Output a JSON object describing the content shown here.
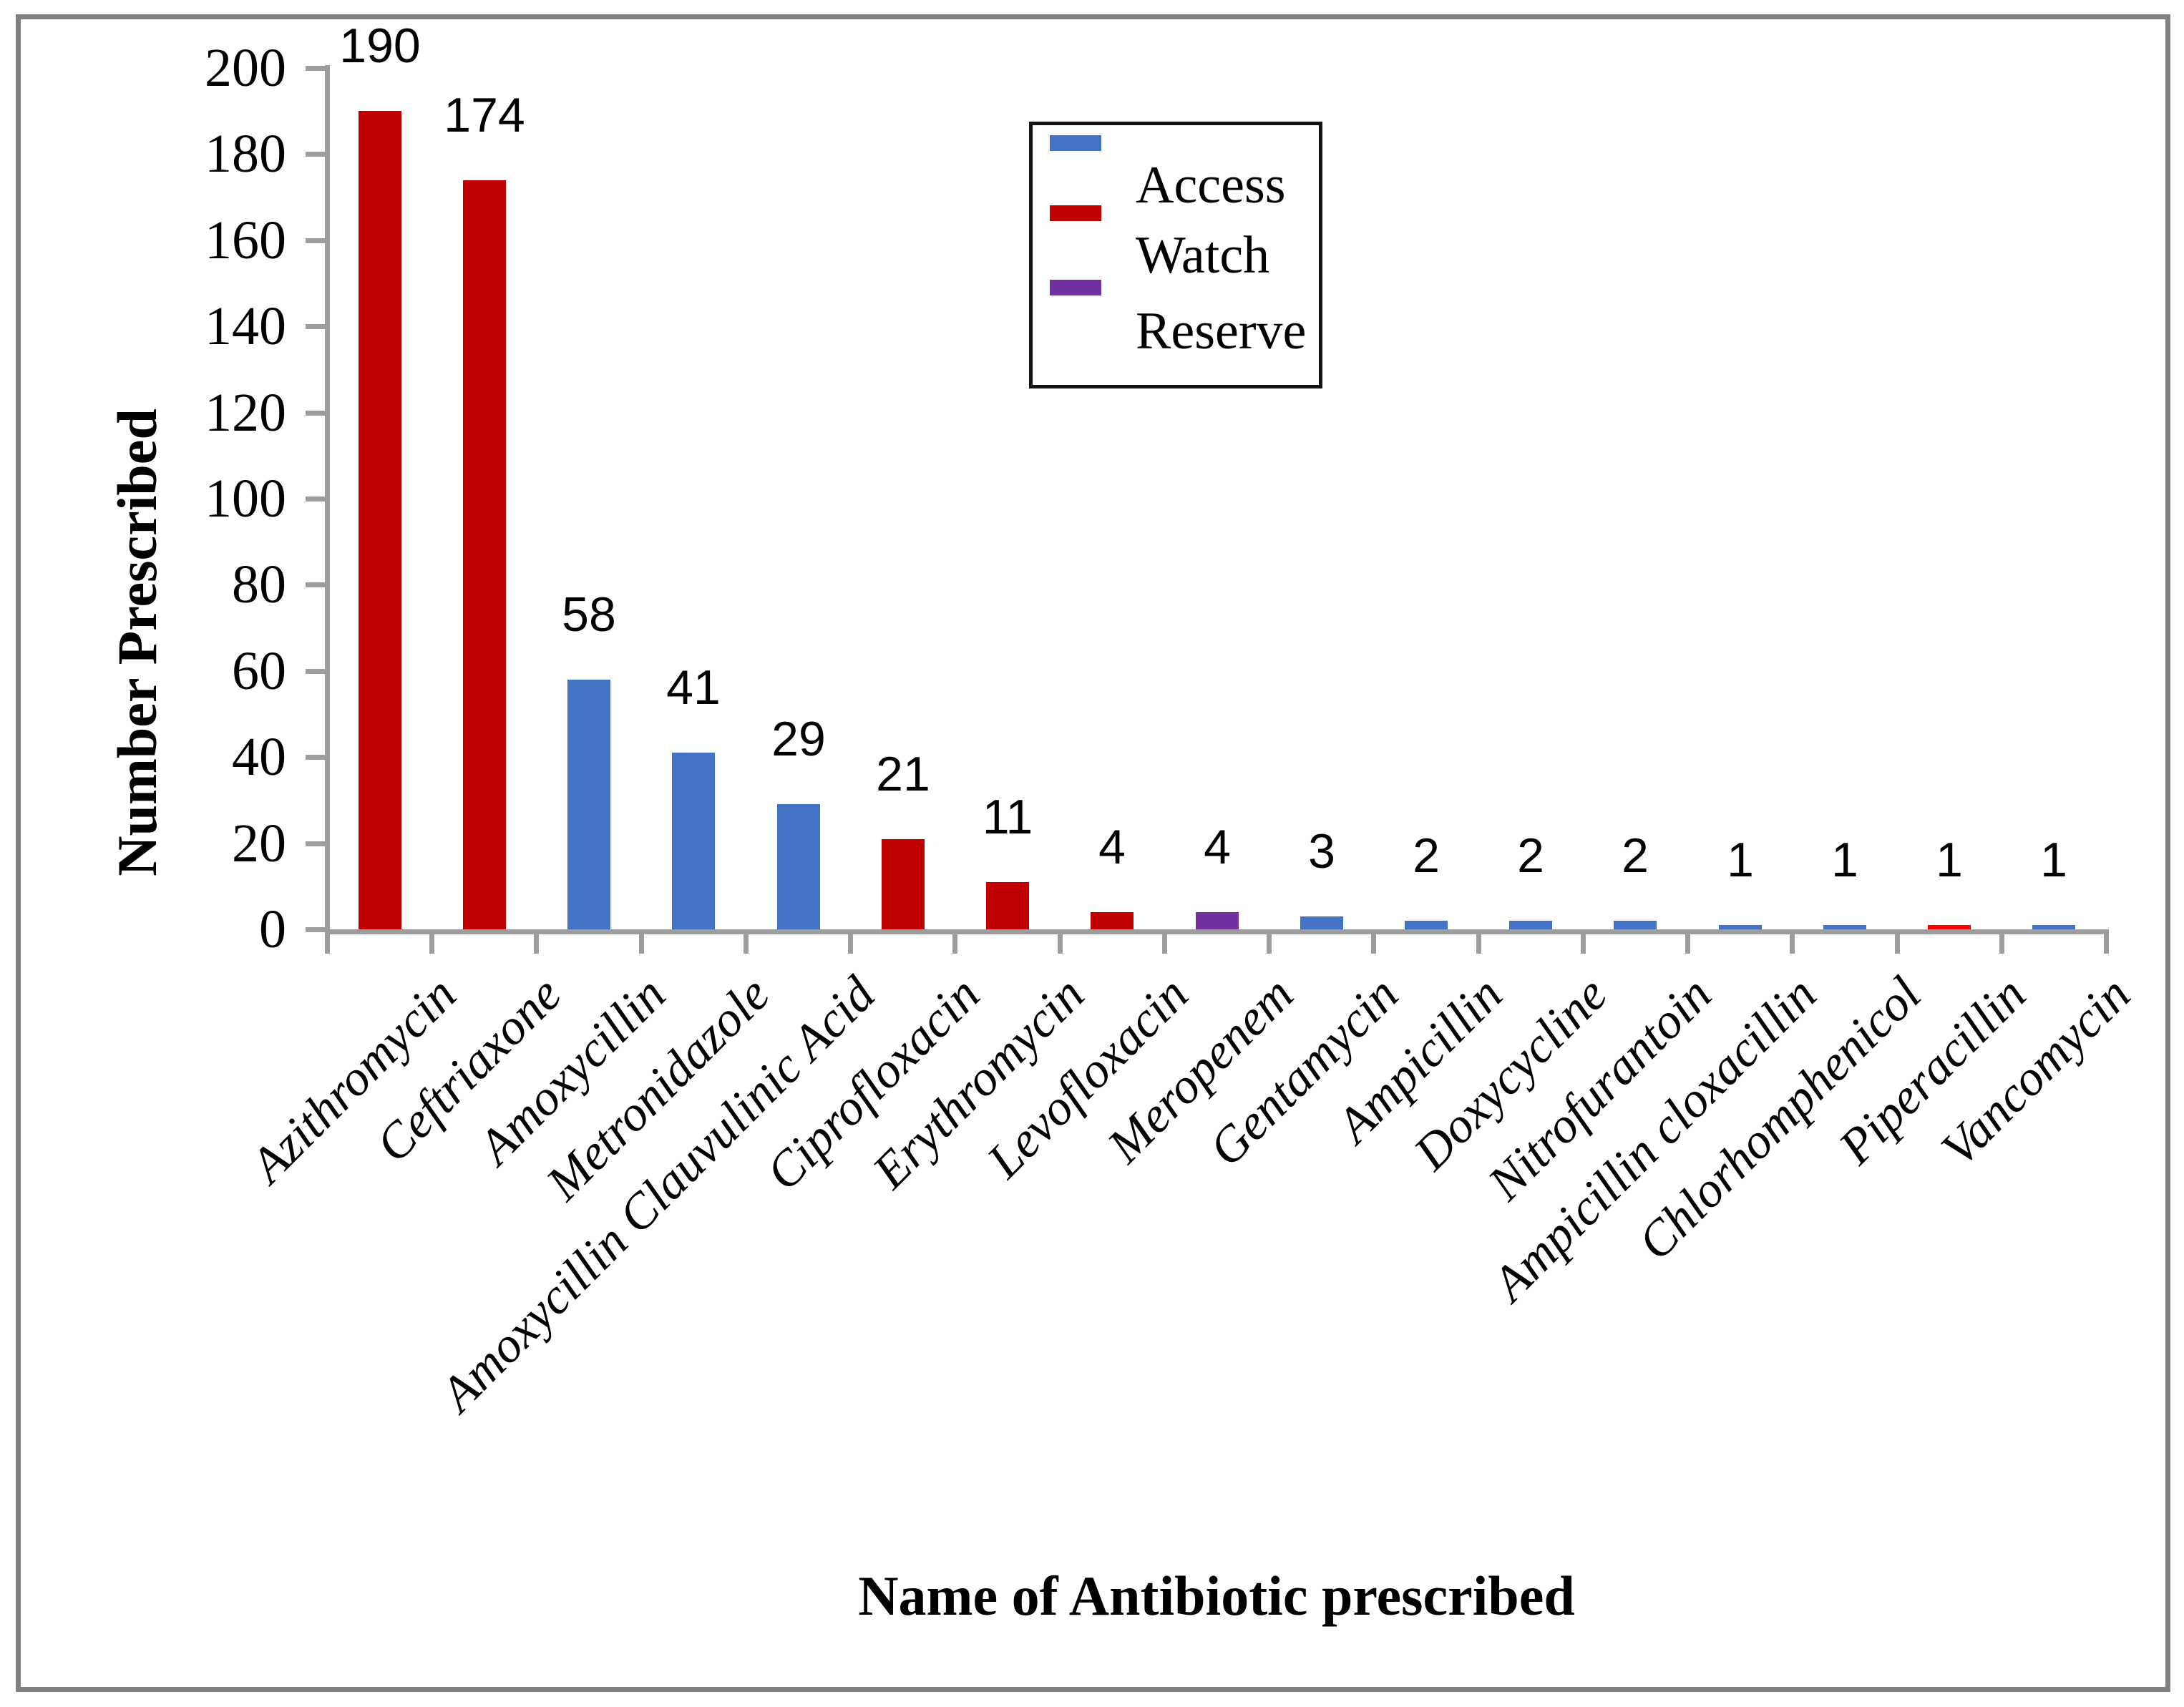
{
  "chart_data": {
    "type": "bar",
    "title": "",
    "xlabel": "Name of Antibiotic prescribed",
    "ylabel": "Number Prescribed",
    "ylim": [
      0,
      200
    ],
    "ytick_step": 20,
    "yticks": [
      0,
      20,
      40,
      60,
      80,
      100,
      120,
      140,
      160,
      180,
      200
    ],
    "grid": false,
    "legend": {
      "position": "top-right-inside",
      "entries": [
        {
          "label": "Access",
          "color": "#4472C4"
        },
        {
          "label": "Watch",
          "color": "#C00000"
        },
        {
          "label": "Reserve",
          "color": "#7030A0"
        }
      ]
    },
    "bars": [
      {
        "category": "Azithromycin",
        "value": 190,
        "group": "Watch",
        "color": "#C00000"
      },
      {
        "category": "Ceftriaxone",
        "value": 174,
        "group": "Watch",
        "color": "#C00000"
      },
      {
        "category": "Amoxycillin",
        "value": 58,
        "group": "Access",
        "color": "#4472C4"
      },
      {
        "category": "Metronidazole",
        "value": 41,
        "group": "Access",
        "color": "#4472C4"
      },
      {
        "category": "Amoxycillin Clauvulinic Acid",
        "value": 29,
        "group": "Access",
        "color": "#4472C4"
      },
      {
        "category": "Ciprofloxacin",
        "value": 21,
        "group": "Watch",
        "color": "#C00000"
      },
      {
        "category": "Erythromycin",
        "value": 11,
        "group": "Watch",
        "color": "#C00000"
      },
      {
        "category": "Levofloxacin",
        "value": 4,
        "group": "Watch",
        "color": "#C00000"
      },
      {
        "category": "Meropenem",
        "value": 4,
        "group": "Reserve",
        "color": "#7030A0"
      },
      {
        "category": "Gentamycin",
        "value": 3,
        "group": "Access",
        "color": "#4472C4"
      },
      {
        "category": "Ampicillin",
        "value": 2,
        "group": "Access",
        "color": "#4472C4"
      },
      {
        "category": "Doxycycline",
        "value": 2,
        "group": "Access",
        "color": "#4472C4"
      },
      {
        "category": "Nitrofurantoin",
        "value": 2,
        "group": "Access",
        "color": "#4472C4"
      },
      {
        "category": "Ampicillin cloxacillin",
        "value": 1,
        "group": "Access",
        "color": "#4472C4"
      },
      {
        "category": "Chlorhomphenicol",
        "value": 1,
        "group": "Access",
        "color": "#4472C4"
      },
      {
        "category": "Piperacillin",
        "value": 1,
        "group": "Watch",
        "color": "#FF0000"
      },
      {
        "category": "Vancomycin",
        "value": 1,
        "group": "Access",
        "color": "#4472C4"
      }
    ]
  },
  "colors": {
    "axis": "#9D9D9D",
    "frame": "#808080",
    "text": "#000000",
    "legend_border": "#141414",
    "background": "#FFFFFF"
  }
}
